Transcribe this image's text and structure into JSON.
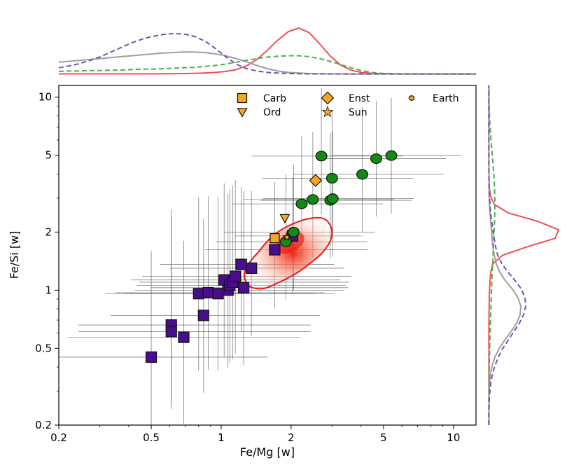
{
  "chart_data": {
    "type": "scatter",
    "title": "",
    "xlabel": "Fe/Mg [w]",
    "ylabel": "Fe/Si [w]",
    "xscale": "log",
    "yscale": "log",
    "xlim": [
      0.2,
      12.5
    ],
    "ylim": [
      0.2,
      11.5
    ],
    "xticks": [
      0.2,
      0.5,
      1,
      2,
      5,
      10
    ],
    "xtick_labels": [
      "0.2",
      "0.5",
      "1",
      "2",
      "5",
      "10"
    ],
    "yticks": [
      0.2,
      0.5,
      1,
      2,
      5,
      10
    ],
    "ytick_labels": [
      "0.2",
      "0.5",
      "1",
      "2",
      "5",
      "10"
    ],
    "legend_position": "top-right",
    "colors": {
      "purple": "#4b0d8f",
      "green": "#148a14",
      "orange": "#f5a623",
      "red_contour": "#e31a1c",
      "red_kde": "#f05050",
      "gray_kde": "#9e9e9e",
      "green_kde": "#4caf50",
      "purple_kde": "#7b4fb0",
      "errorbar": "#555555"
    },
    "legend": [
      {
        "label": "Carb",
        "marker": "square"
      },
      {
        "label": "Ord",
        "marker": "triangle-down"
      },
      {
        "label": "Enst",
        "marker": "diamond"
      },
      {
        "label": "Sun",
        "marker": "star"
      },
      {
        "label": "Earth",
        "marker": "circle"
      }
    ],
    "series": [
      {
        "marker": "square",
        "color": "#4b0d8f",
        "points": [
          {
            "x": 0.5,
            "y": 0.45,
            "xerr": [
              0.5,
              0.5
            ],
            "yerr": [
              0.35,
              0.55
            ]
          },
          {
            "x": 0.61,
            "y": 0.66,
            "xerr": [
              0.4,
              0.6
            ],
            "yerr": [
              0.4,
              0.6
            ]
          },
          {
            "x": 0.61,
            "y": 0.61,
            "xerr": [
              0.4,
              0.6
            ],
            "yerr": [
              0.4,
              0.6
            ]
          },
          {
            "x": 0.69,
            "y": 0.57,
            "xerr": [
              0.5,
              0.5
            ],
            "yerr": [
              0.45,
              0.5
            ]
          },
          {
            "x": 0.8,
            "y": 0.96,
            "xerr": [
              0.4,
              0.5
            ],
            "yerr": [
              0.4,
              0.5
            ]
          },
          {
            "x": 0.84,
            "y": 0.74,
            "xerr": [
              0.4,
              0.5
            ],
            "yerr": [
              0.4,
              0.5
            ]
          },
          {
            "x": 0.88,
            "y": 0.97,
            "xerr": [
              0.4,
              0.5
            ],
            "yerr": [
              0.4,
              0.5
            ]
          },
          {
            "x": 0.97,
            "y": 0.96,
            "xerr": [
              0.4,
              0.5
            ],
            "yerr": [
              0.4,
              0.5
            ]
          },
          {
            "x": 1.03,
            "y": 1.13,
            "xerr": [
              0.4,
              0.5
            ],
            "yerr": [
              0.4,
              0.5
            ]
          },
          {
            "x": 1.07,
            "y": 1.0,
            "xerr": [
              0.4,
              0.5
            ],
            "yerr": [
              0.4,
              0.5
            ]
          },
          {
            "x": 1.09,
            "y": 1.06,
            "xerr": [
              0.4,
              0.5
            ],
            "yerr": [
              0.4,
              0.5
            ]
          },
          {
            "x": 1.12,
            "y": 1.1,
            "xerr": [
              0.4,
              0.5
            ],
            "yerr": [
              0.4,
              0.5
            ]
          },
          {
            "x": 1.15,
            "y": 1.18,
            "xerr": [
              0.4,
              0.5
            ],
            "yerr": [
              0.4,
              0.5
            ]
          },
          {
            "x": 1.22,
            "y": 1.36,
            "xerr": [
              0.35,
              0.4
            ],
            "yerr": [
              0.35,
              0.4
            ]
          },
          {
            "x": 1.25,
            "y": 1.03,
            "xerr": [
              0.4,
              0.45
            ],
            "yerr": [
              0.4,
              0.5
            ]
          },
          {
            "x": 1.35,
            "y": 1.3,
            "xerr": [
              0.35,
              0.4
            ],
            "yerr": [
              0.35,
              0.4
            ]
          },
          {
            "x": 1.7,
            "y": 1.62,
            "xerr": [
              0.3,
              0.4
            ],
            "yerr": [
              0.3,
              0.35
            ]
          },
          {
            "x": 2.03,
            "y": 1.91,
            "xerr": [
              0.25,
              0.3
            ],
            "yerr": [
              0.3,
              0.3
            ]
          }
        ]
      },
      {
        "marker": "circle",
        "color": "#148a14",
        "points": [
          {
            "x": 1.9,
            "y": 1.78,
            "xerr": [
              0.3,
              0.35
            ],
            "yerr": [
              0.3,
              0.35
            ]
          },
          {
            "x": 2.05,
            "y": 2.0,
            "xerr": [
              0.3,
              0.35
            ],
            "yerr": [
              0.3,
              0.35
            ]
          },
          {
            "x": 2.22,
            "y": 2.8,
            "xerr": [
              0.3,
              0.35
            ],
            "yerr": [
              0.3,
              0.35
            ]
          },
          {
            "x": 2.48,
            "y": 2.95,
            "xerr": [
              0.3,
              0.35
            ],
            "yerr": [
              0.3,
              0.35
            ]
          },
          {
            "x": 2.7,
            "y": 4.95,
            "xerr": [
              0.3,
              0.35
            ],
            "yerr": [
              0.3,
              0.35
            ]
          },
          {
            "x": 2.95,
            "y": 2.92,
            "xerr": [
              0.3,
              0.35
            ],
            "yerr": [
              0.3,
              0.35
            ]
          },
          {
            "x": 3.0,
            "y": 3.8,
            "xerr": [
              0.3,
              0.35
            ],
            "yerr": [
              0.3,
              0.35
            ]
          },
          {
            "x": 3.02,
            "y": 2.98,
            "xerr": [
              0.3,
              0.35
            ],
            "yerr": [
              0.3,
              0.35
            ]
          },
          {
            "x": 4.05,
            "y": 3.98,
            "xerr": [
              0.3,
              0.35
            ],
            "yerr": [
              0.3,
              0.35
            ]
          },
          {
            "x": 4.65,
            "y": 4.8,
            "xerr": [
              0.25,
              0.3
            ],
            "yerr": [
              0.3,
              0.3
            ]
          },
          {
            "x": 5.4,
            "y": 4.98,
            "xerr": [
              0.25,
              0.3
            ],
            "yerr": [
              0.3,
              0.3
            ]
          }
        ]
      },
      {
        "marker": "reference",
        "points": [
          {
            "label": "Carb",
            "x": 1.7,
            "y": 1.86,
            "marker": "square",
            "color": "#f5a623"
          },
          {
            "label": "Ord",
            "x": 1.88,
            "y": 2.36,
            "marker": "triangle-down",
            "color": "#f5a623"
          },
          {
            "label": "Enst",
            "x": 2.55,
            "y": 3.7,
            "marker": "diamond",
            "color": "#f5a623"
          },
          {
            "label": "Sun",
            "x": 1.91,
            "y": 1.89,
            "marker": "star",
            "color": "#f5a623"
          },
          {
            "label": "Earth",
            "x": 1.92,
            "y": 1.88,
            "marker": "circle",
            "color": "#f5a623"
          }
        ]
      }
    ],
    "density": {
      "center": [
        1.98,
        1.76
      ],
      "contour": [
        [
          1.32,
          1.05
        ],
        [
          1.26,
          1.2
        ],
        [
          1.32,
          1.38
        ],
        [
          1.46,
          1.6
        ],
        [
          1.62,
          1.85
        ],
        [
          1.82,
          2.06
        ],
        [
          2.1,
          2.24
        ],
        [
          2.44,
          2.36
        ],
        [
          2.78,
          2.34
        ],
        [
          2.98,
          2.1
        ],
        [
          2.96,
          1.82
        ],
        [
          2.72,
          1.56
        ],
        [
          2.42,
          1.38
        ],
        [
          2.1,
          1.22
        ],
        [
          1.78,
          1.1
        ],
        [
          1.52,
          1.02
        ]
      ]
    },
    "marginal_x": [
      {
        "color": "#f05050",
        "dash": "solid",
        "values": [
          0.008,
          0.008,
          0.008,
          0.008,
          0.008,
          0.008,
          0.008,
          0.008,
          0.008,
          0.008,
          0.01,
          0.012,
          0.015,
          0.02,
          0.028,
          0.04,
          0.06,
          0.1,
          0.18,
          0.32,
          0.52,
          0.74,
          0.92,
          1.0,
          0.9,
          0.66,
          0.4,
          0.2,
          0.09,
          0.04,
          0.018,
          0.01,
          0.008,
          0.007,
          0.006,
          0.006,
          0.006,
          0.006,
          0.006,
          0.006,
          0.006
        ]
      },
      {
        "color": "#9e9e9e",
        "dash": "solid",
        "values": [
          0.26,
          0.28,
          0.3,
          0.32,
          0.34,
          0.36,
          0.38,
          0.4,
          0.42,
          0.44,
          0.46,
          0.47,
          0.48,
          0.48,
          0.47,
          0.44,
          0.4,
          0.34,
          0.27,
          0.19,
          0.12,
          0.07,
          0.04,
          0.025,
          0.015,
          0.01,
          0.008,
          0.007,
          0.006,
          0.006,
          0.006,
          0.006,
          0.006,
          0.006,
          0.006,
          0.006,
          0.006,
          0.006,
          0.006,
          0.006,
          0.006
        ]
      },
      {
        "color": "#4caf50",
        "dash": "dashed",
        "values": [
          0.06,
          0.07,
          0.07,
          0.08,
          0.08,
          0.09,
          0.09,
          0.1,
          0.11,
          0.11,
          0.12,
          0.13,
          0.14,
          0.15,
          0.17,
          0.19,
          0.22,
          0.26,
          0.3,
          0.34,
          0.37,
          0.39,
          0.4,
          0.4,
          0.38,
          0.34,
          0.28,
          0.21,
          0.14,
          0.08,
          0.04,
          0.02,
          0.012,
          0.008,
          0.007,
          0.006,
          0.006,
          0.006,
          0.006,
          0.006,
          0.006
        ]
      },
      {
        "color": "#7b4fb0",
        "dash": "dashed",
        "values": [
          0.14,
          0.18,
          0.23,
          0.3,
          0.38,
          0.48,
          0.58,
          0.68,
          0.76,
          0.82,
          0.86,
          0.88,
          0.87,
          0.82,
          0.72,
          0.56,
          0.38,
          0.22,
          0.12,
          0.07,
          0.04,
          0.025,
          0.015,
          0.01,
          0.008,
          0.007,
          0.006,
          0.006,
          0.006,
          0.006,
          0.006,
          0.006,
          0.006,
          0.006,
          0.006,
          0.006,
          0.006,
          0.006,
          0.006,
          0.006,
          0.006
        ]
      }
    ],
    "marginal_y": [
      {
        "color": "#f05050",
        "dash": "solid",
        "values": [
          0.004,
          0.004,
          0.004,
          0.004,
          0.004,
          0.004,
          0.004,
          0.004,
          0.004,
          0.004,
          0.004,
          0.004,
          0.005,
          0.006,
          0.008,
          0.01,
          0.014,
          0.02,
          0.03,
          0.06,
          0.2,
          0.55,
          0.95,
          1.0,
          0.7,
          0.28,
          0.08,
          0.025,
          0.01,
          0.006,
          0.005,
          0.004,
          0.004,
          0.004,
          0.004,
          0.004,
          0.004,
          0.004,
          0.004,
          0.004,
          0.004
        ]
      },
      {
        "color": "#9e9e9e",
        "dash": "solid",
        "values": [
          0.004,
          0.004,
          0.004,
          0.005,
          0.008,
          0.014,
          0.026,
          0.05,
          0.09,
          0.15,
          0.23,
          0.32,
          0.4,
          0.45,
          0.46,
          0.42,
          0.34,
          0.24,
          0.16,
          0.11,
          0.08,
          0.06,
          0.05,
          0.04,
          0.03,
          0.02,
          0.012,
          0.008,
          0.006,
          0.005,
          0.004,
          0.004,
          0.004,
          0.004,
          0.004,
          0.004,
          0.004,
          0.004,
          0.004,
          0.004,
          0.004
        ]
      },
      {
        "color": "#4caf50",
        "dash": "dashed",
        "values": [
          0.004,
          0.004,
          0.004,
          0.004,
          0.005,
          0.006,
          0.008,
          0.01,
          0.012,
          0.015,
          0.018,
          0.022,
          0.026,
          0.03,
          0.034,
          0.038,
          0.042,
          0.047,
          0.052,
          0.058,
          0.064,
          0.07,
          0.075,
          0.08,
          0.085,
          0.088,
          0.09,
          0.088,
          0.084,
          0.078,
          0.07,
          0.06,
          0.05,
          0.04,
          0.03,
          0.022,
          0.015,
          0.01,
          0.007,
          0.005,
          0.004
        ]
      },
      {
        "color": "#7b4fb0",
        "dash": "dashed",
        "values": [
          0.004,
          0.004,
          0.006,
          0.01,
          0.018,
          0.032,
          0.055,
          0.09,
          0.14,
          0.2,
          0.28,
          0.36,
          0.44,
          0.5,
          0.53,
          0.52,
          0.47,
          0.38,
          0.28,
          0.19,
          0.13,
          0.1,
          0.08,
          0.06,
          0.045,
          0.03,
          0.02,
          0.012,
          0.008,
          0.006,
          0.005,
          0.004,
          0.004,
          0.004,
          0.004,
          0.004,
          0.004,
          0.004,
          0.004,
          0.004,
          0.004
        ]
      }
    ]
  }
}
